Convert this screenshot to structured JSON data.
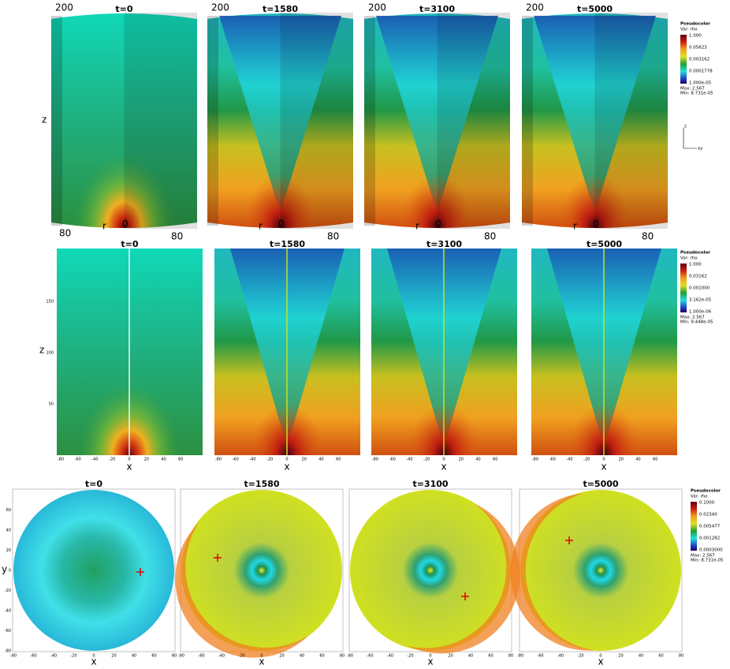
{
  "top_row": {
    "panels": [
      {
        "title": "t=0",
        "z_top": "200",
        "r_label": "r",
        "zero": "0",
        "r_max": "80"
      },
      {
        "title": "t=1580",
        "z_top": "200",
        "r_label": "r",
        "zero": "0",
        "r_max": "80"
      },
      {
        "title": "t=3100",
        "z_top": "200",
        "r_label": "r",
        "zero": "0",
        "r_max": "80"
      },
      {
        "title": "t=5000",
        "z_top": "200",
        "r_label": "r",
        "zero": "0",
        "r_max": "80"
      }
    ],
    "z_label": "z",
    "r_left": "80",
    "legend": {
      "title": "Pseudocolor",
      "var": "Var: rho",
      "levels": [
        "1.000",
        "0.05623",
        "0.003162",
        "0.0001778",
        "1.000e-05"
      ],
      "max": "Max: 2.567",
      "min": "Min: 8.731e-05"
    },
    "triad": {
      "z": "z",
      "xy": "xy"
    }
  },
  "middle_row": {
    "panels": [
      {
        "title": "t=0",
        "x_label": "x"
      },
      {
        "title": "t=1580",
        "x_label": "x"
      },
      {
        "title": "t=3100",
        "x_label": "x"
      },
      {
        "title": "t=5000",
        "x_label": "x"
      }
    ],
    "xticks": [
      -80,
      -60,
      -40,
      -20,
      0,
      20,
      40,
      60
    ],
    "zticks": [
      50,
      100,
      150
    ],
    "z_label": "z",
    "legend": {
      "title": "Pseudocolor",
      "var": "Var: rho",
      "levels": [
        "1.000",
        "0.03162",
        "0.001000",
        "3.162e-05",
        "1.000e-06"
      ],
      "max": "Max: 2.567",
      "min": "Min: 9.448e-05"
    }
  },
  "bottom_row": {
    "panels": [
      {
        "title": "t=0",
        "x_label": "x"
      },
      {
        "title": "t=1580",
        "x_label": "x"
      },
      {
        "title": "t=3100",
        "x_label": "x"
      },
      {
        "title": "t=5000",
        "x_label": "x"
      }
    ],
    "xticks": [
      -80,
      -60,
      -40,
      -20,
      0,
      20,
      40,
      60,
      80
    ],
    "yticks": [
      60,
      40,
      20,
      0,
      -20,
      -40,
      -60,
      -80
    ],
    "y_label": "y",
    "legend": {
      "title": "Pseudocolor",
      "var": "Var: rho",
      "levels": [
        "0.1000",
        "0.02340",
        "0.005477",
        "0.001282",
        "0.0003000"
      ],
      "max": "Max: 2.567",
      "min": "Min: 8.731e-05"
    }
  }
}
